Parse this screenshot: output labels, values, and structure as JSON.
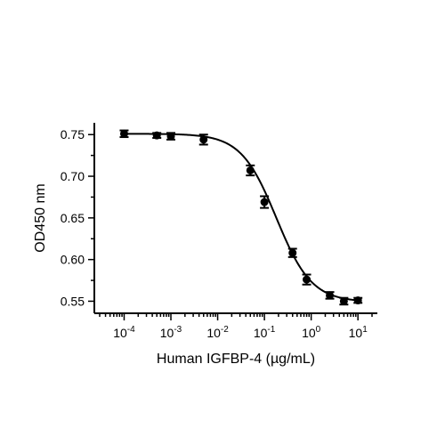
{
  "chart_data": {
    "type": "scatter",
    "xlabel": "Human IGFBP-4 (µg/mL)",
    "ylabel": "OD450 nm",
    "x_scale": "log10",
    "xlim": [
      3e-05,
      20
    ],
    "ylim": [
      0.543,
      0.762
    ],
    "x_ticks": [
      {
        "value": 0.0001,
        "base": "10",
        "exp": "-4"
      },
      {
        "value": 0.001,
        "base": "10",
        "exp": "-3"
      },
      {
        "value": 0.01,
        "base": "10",
        "exp": "-2"
      },
      {
        "value": 0.1,
        "base": "10",
        "exp": "-1"
      },
      {
        "value": 1,
        "base": "10",
        "exp": "0"
      },
      {
        "value": 10,
        "base": "10",
        "exp": "1"
      }
    ],
    "y_ticks": [
      {
        "value": 0.55,
        "label": "0.55"
      },
      {
        "value": 0.6,
        "label": "0.60"
      },
      {
        "value": 0.65,
        "label": "0.65"
      },
      {
        "value": 0.7,
        "label": "0.70"
      },
      {
        "value": 0.75,
        "label": "0.75"
      }
    ],
    "series": [
      {
        "points": [
          {
            "x": 0.0001,
            "y": 0.751,
            "err": 0.004
          },
          {
            "x": 0.0005,
            "y": 0.749,
            "err": 0.003
          },
          {
            "x": 0.001,
            "y": 0.748,
            "err": 0.004
          },
          {
            "x": 0.005,
            "y": 0.744,
            "err": 0.006
          },
          {
            "x": 0.05,
            "y": 0.707,
            "err": 0.006
          },
          {
            "x": 0.1,
            "y": 0.669,
            "err": 0.007
          },
          {
            "x": 0.4,
            "y": 0.608,
            "err": 0.005
          },
          {
            "x": 0.8,
            "y": 0.576,
            "err": 0.006
          },
          {
            "x": 2.5,
            "y": 0.557,
            "err": 0.004
          },
          {
            "x": 5,
            "y": 0.55,
            "err": 0.004
          },
          {
            "x": 10,
            "y": 0.551,
            "err": 0.003
          }
        ]
      }
    ],
    "fit": {
      "type": "4PL",
      "top": 0.751,
      "bottom": 0.549,
      "ec50": 0.18,
      "hill": 1.15
    },
    "grid": false,
    "legend": "none",
    "colors": {
      "marker": "#000000",
      "line": "#000000"
    }
  }
}
